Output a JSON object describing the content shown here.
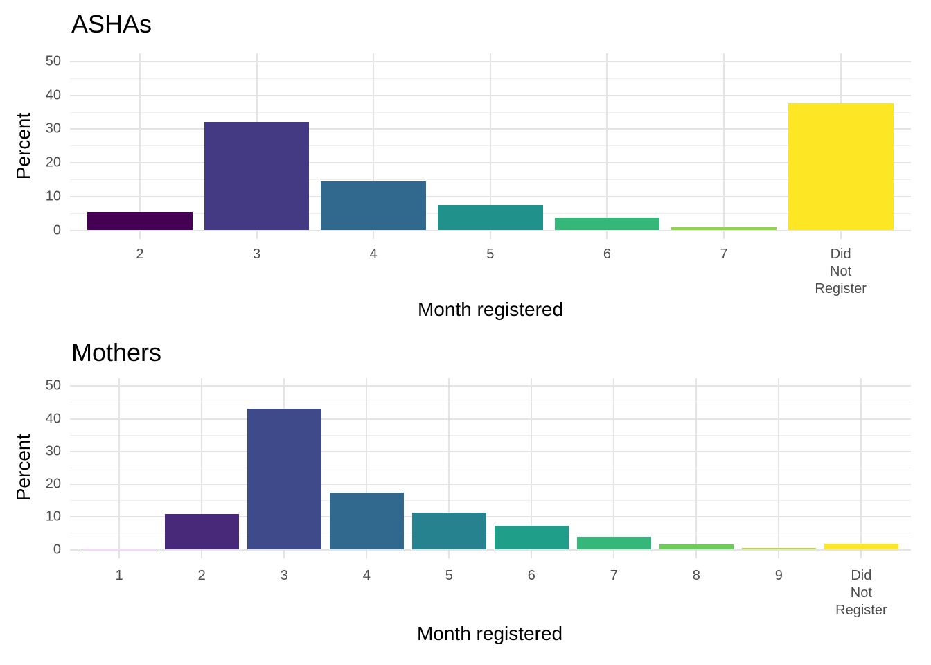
{
  "figure": {
    "background": "#FFFFFF"
  },
  "styles": {
    "title_color": "#000000",
    "axis_title_color": "#000000",
    "tick_label_color": "#4D4D4D",
    "grid_major_color": "#E4E4E4",
    "grid_minor_color": "#EFEFEF"
  },
  "chart_data": [
    {
      "type": "bar",
      "title": "ASHAs",
      "xlabel": "Month registered",
      "ylabel": "Percent",
      "categories": [
        "2",
        "3",
        "4",
        "5",
        "6",
        "7",
        "Did Not Register"
      ],
      "values": [
        5.5,
        32.2,
        14.5,
        7.5,
        3.7,
        0.9,
        37.7
      ],
      "bar_colors": [
        "#440154",
        "#443983",
        "#31688E",
        "#21918C",
        "#35B779",
        "#90D743",
        "#FDE725"
      ],
      "ylim": [
        0,
        50
      ],
      "yticks": [
        0,
        10,
        20,
        30,
        40,
        50
      ],
      "yticks_minor": [
        5,
        15,
        25,
        35,
        45
      ],
      "grid": "on",
      "legend": "none"
    },
    {
      "type": "bar",
      "title": "Mothers",
      "xlabel": "Month registered",
      "ylabel": "Percent",
      "categories": [
        "1",
        "2",
        "3",
        "4",
        "5",
        "6",
        "7",
        "8",
        "9",
        "Did Not Register"
      ],
      "values": [
        0.4,
        10.8,
        43,
        17.5,
        11.3,
        7.2,
        4,
        1.5,
        0.6,
        1.9
      ],
      "bar_colors": [
        "#440154",
        "#482878",
        "#3E4A89",
        "#31688E",
        "#26828E",
        "#1F9E89",
        "#35B779",
        "#6DCD59",
        "#B4DE2C",
        "#FDE725"
      ],
      "ylim": [
        0,
        50
      ],
      "yticks": [
        0,
        10,
        20,
        30,
        40,
        50
      ],
      "yticks_minor": [
        5,
        15,
        25,
        35,
        45
      ],
      "grid": "on",
      "legend": "none"
    }
  ]
}
